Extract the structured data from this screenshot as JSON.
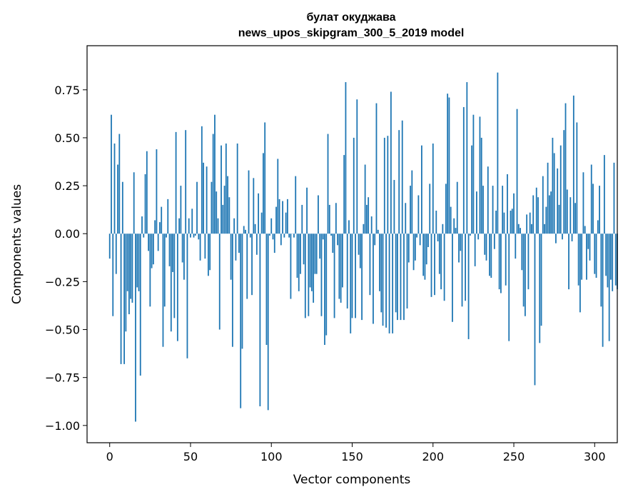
{
  "chart_data": {
    "type": "bar",
    "title": "булат окуджава",
    "subtitle": "news_upos_skipgram_300_5_2019 model",
    "xlabel": "Vector components",
    "ylabel": "Components values",
    "xlim": [
      -14,
      314
    ],
    "ylim": [
      -1.09,
      0.98
    ],
    "xticks": [
      0,
      50,
      100,
      150,
      200,
      250,
      300
    ],
    "xtick_labels": [
      "0",
      "50",
      "100",
      "150",
      "200",
      "250",
      "300"
    ],
    "yticks": [
      -1.0,
      -0.75,
      -0.5,
      -0.25,
      0.0,
      0.25,
      0.5,
      0.75
    ],
    "ytick_labels": [
      "−1.00",
      "−0.75",
      "−0.50",
      "−0.25",
      "0.00",
      "0.25",
      "0.50",
      "0.75"
    ],
    "bar_color": "#1f77b4",
    "grid": false,
    "values": [
      -0.13,
      0.62,
      -0.43,
      0.47,
      -0.21,
      0.36,
      0.52,
      -0.68,
      0.27,
      -0.68,
      -0.51,
      -0.3,
      -0.42,
      -0.34,
      -0.36,
      0.32,
      -0.98,
      -0.28,
      -0.3,
      -0.74,
      0.09,
      -0.02,
      0.31,
      0.43,
      -0.09,
      -0.38,
      -0.18,
      -0.16,
      0.07,
      0.44,
      -0.09,
      0.06,
      0.14,
      -0.59,
      -0.38,
      -0.02,
      0.18,
      -0.17,
      -0.51,
      -0.2,
      -0.44,
      0.53,
      -0.56,
      0.08,
      0.25,
      -0.15,
      -0.24,
      0.54,
      -0.65,
      0.08,
      -0.02,
      0.13,
      -0.02,
      -0.01,
      0.27,
      -0.03,
      -0.14,
      0.56,
      0.37,
      -0.13,
      0.35,
      -0.22,
      -0.19,
      0.27,
      0.52,
      0.62,
      0.22,
      0.08,
      -0.5,
      0.46,
      0.15,
      0.25,
      0.47,
      0.3,
      0.19,
      -0.24,
      -0.59,
      0.08,
      -0.14,
      0.47,
      -0.1,
      -0.91,
      -0.6,
      0.04,
      0.02,
      -0.34,
      0.33,
      -0.02,
      -0.32,
      0.29,
      0.05,
      -0.11,
      0.21,
      -0.9,
      0.11,
      0.42,
      0.58,
      -0.58,
      -0.92,
      -0.01,
      0.08,
      -0.03,
      -0.1,
      0.14,
      0.39,
      0.18,
      -0.06,
      0.17,
      -0.02,
      0.11,
      0.18,
      -0.02,
      -0.34,
      0.0,
      -0.02,
      0.3,
      -0.23,
      -0.3,
      -0.21,
      0.15,
      -0.16,
      -0.44,
      0.24,
      -0.43,
      -0.28,
      -0.3,
      -0.36,
      -0.21,
      -0.21,
      0.2,
      -0.13,
      -0.43,
      -0.03,
      -0.58,
      -0.53,
      0.52,
      0.15,
      -0.01,
      -0.1,
      -0.44,
      0.16,
      -0.06,
      -0.34,
      -0.36,
      -0.28,
      0.41,
      0.79,
      -0.39,
      0.07,
      -0.52,
      -0.44,
      0.5,
      -0.44,
      0.7,
      -0.11,
      -0.18,
      -0.45,
      0.05,
      0.36,
      0.15,
      0.19,
      -0.32,
      0.09,
      -0.47,
      -0.06,
      0.68,
      0.02,
      -0.3,
      -0.41,
      -0.48,
      0.5,
      -0.49,
      0.51,
      -0.52,
      0.74,
      -0.52,
      0.28,
      -0.41,
      -0.45,
      0.54,
      -0.45,
      0.59,
      -0.45,
      0.16,
      -0.39,
      -0.15,
      0.25,
      0.33,
      -0.19,
      -0.14,
      -0.02,
      0.2,
      -0.06,
      0.46,
      -0.22,
      -0.24,
      -0.16,
      -0.07,
      0.26,
      -0.33,
      0.47,
      -0.32,
      0.12,
      -0.04,
      -0.21,
      -0.29,
      0.05,
      -0.35,
      0.26,
      0.73,
      0.71,
      0.14,
      -0.46,
      0.08,
      0.03,
      0.27,
      -0.15,
      -0.09,
      -0.38,
      0.66,
      -0.35,
      0.79,
      -0.55,
      -0.01,
      0.46,
      0.62,
      -0.17,
      0.22,
      -0.03,
      0.61,
      0.5,
      0.25,
      -0.11,
      -0.14,
      0.35,
      -0.22,
      -0.23,
      0.25,
      -0.08,
      0.12,
      0.84,
      -0.29,
      -0.31,
      0.25,
      0.11,
      -0.27,
      0.31,
      -0.56,
      0.12,
      0.13,
      0.21,
      -0.13,
      0.65,
      0.05,
      0.03,
      -0.19,
      -0.38,
      -0.43,
      0.1,
      -0.29,
      0.11,
      0.05,
      0.2,
      -0.79,
      0.24,
      0.19,
      -0.57,
      -0.48,
      0.3,
      0.05,
      0.14,
      0.37,
      0.2,
      0.22,
      0.5,
      0.42,
      -0.05,
      0.34,
      0.15,
      0.46,
      -0.03,
      0.54,
      0.68,
      0.23,
      -0.29,
      0.19,
      -0.04,
      0.72,
      0.16,
      0.58,
      -0.27,
      -0.41,
      -0.24,
      0.32,
      0.04,
      -0.24,
      -0.08,
      -0.14,
      0.36,
      0.26,
      -0.21,
      -0.23,
      0.07,
      0.25,
      -0.38,
      -0.59,
      0.41,
      -0.22,
      -0.28,
      -0.56,
      -0.24,
      -0.3,
      0.37,
      -0.27,
      -0.29
    ]
  }
}
